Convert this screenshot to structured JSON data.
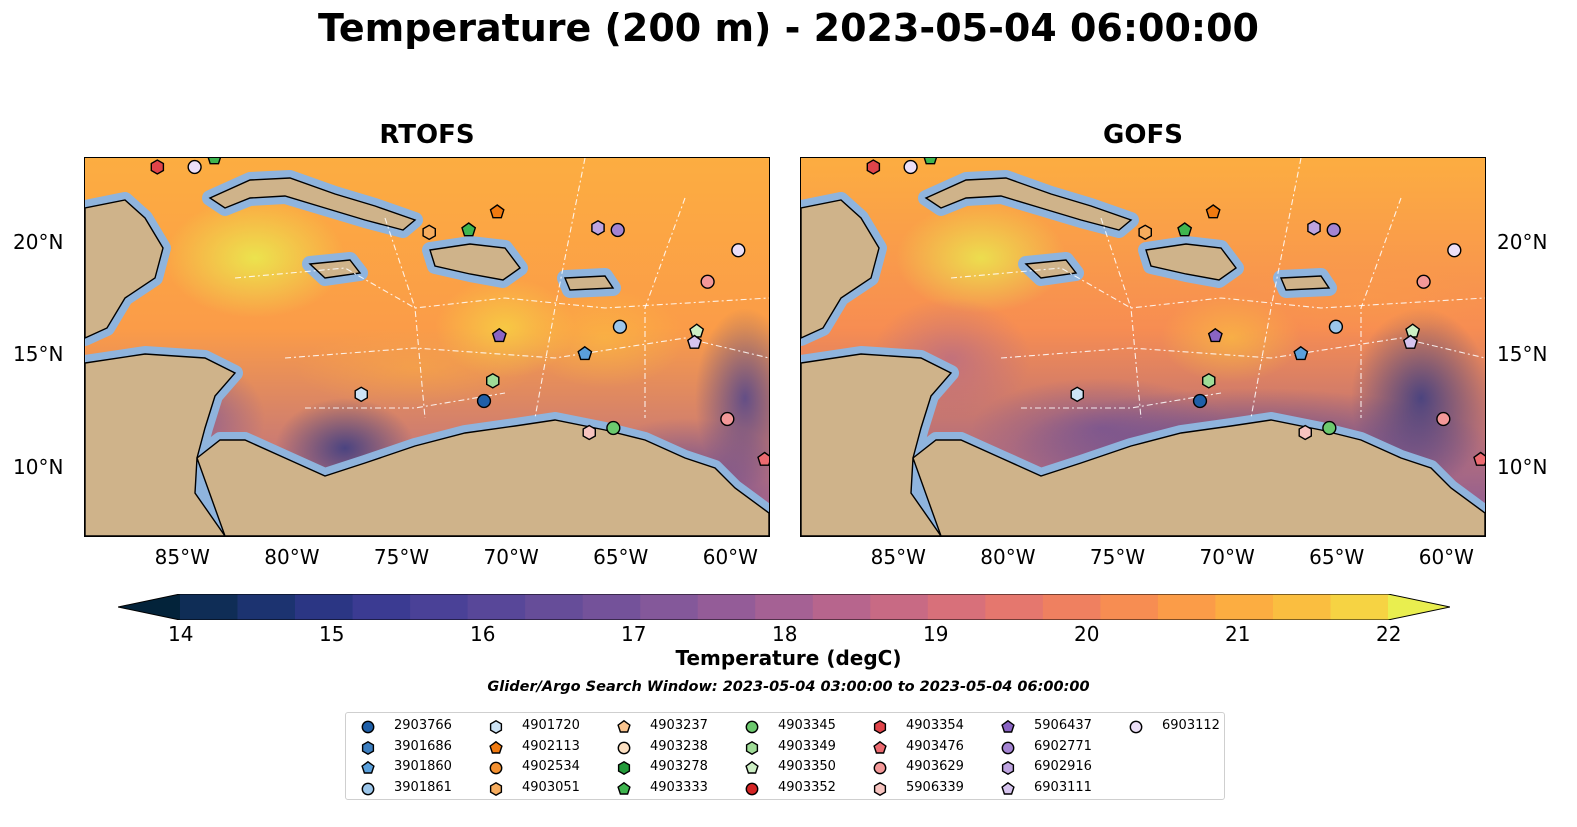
{
  "title": "Temperature (200 m) - 2023-05-04 06:00:00",
  "panels": [
    {
      "title": "RTOFS"
    },
    {
      "title": "GOFS"
    }
  ],
  "axes": {
    "lon_ticks": [
      "85°W",
      "80°W",
      "75°W",
      "70°W",
      "65°W",
      "60°W"
    ],
    "lat_ticks": [
      "20°N",
      "15°N",
      "10°N"
    ],
    "lon_values": [
      -85,
      -80,
      -75,
      -70,
      -65,
      -60
    ],
    "lat_values": [
      20,
      15,
      10
    ],
    "lon_range": [
      -89.5,
      -58.3
    ],
    "lat_range": [
      7.0,
      23.8
    ]
  },
  "colorbar": {
    "label": "Temperature (degC)",
    "ticks": [
      "14",
      "15",
      "16",
      "17",
      "18",
      "19",
      "20",
      "21",
      "22"
    ],
    "tick_values": [
      14,
      15,
      16,
      17,
      18,
      19,
      20,
      21,
      22
    ],
    "range": [
      13.6,
      22.4
    ],
    "extend": "both",
    "colors": [
      "#03233a",
      "#0f2d56",
      "#1c3370",
      "#2b3684",
      "#3b3b92",
      "#4a4197",
      "#584799",
      "#664d99",
      "#74529a",
      "#84589a",
      "#945c98",
      "#a56194",
      "#b7658d",
      "#c86a84",
      "#d8707a",
      "#e5776e",
      "#ef8060",
      "#f78d52",
      "#fb9c48",
      "#fcad41",
      "#fabe40",
      "#f6d343",
      "#e9ee4f"
    ]
  },
  "search_window": "Glider/Argo Search Window: 2023-05-04 03:00:00 to 2023-05-04 06:00:00",
  "legend": [
    {
      "id": "2903766",
      "shape": "circle",
      "color": "#1f5fa8"
    },
    {
      "id": "3901686",
      "shape": "hexagon",
      "color": "#3d7fc0"
    },
    {
      "id": "3901860",
      "shape": "pentagon",
      "color": "#5aa0dc"
    },
    {
      "id": "3901861",
      "shape": "circle",
      "color": "#9cc6ea"
    },
    {
      "id": "4901720",
      "shape": "hexagon",
      "color": "#cde3f5"
    },
    {
      "id": "4902113",
      "shape": "pentagon",
      "color": "#f07a10"
    },
    {
      "id": "4902534",
      "shape": "circle",
      "color": "#f39030"
    },
    {
      "id": "4903051",
      "shape": "hexagon",
      "color": "#f6ac5e"
    },
    {
      "id": "4903237",
      "shape": "pentagon",
      "color": "#f9c48f"
    },
    {
      "id": "4903238",
      "shape": "circle",
      "color": "#fde0c2"
    },
    {
      "id": "4903278",
      "shape": "hexagon",
      "color": "#239a3a"
    },
    {
      "id": "4903333",
      "shape": "pentagon",
      "color": "#3fb54f"
    },
    {
      "id": "4903345",
      "shape": "circle",
      "color": "#6cc96e"
    },
    {
      "id": "4903349",
      "shape": "hexagon",
      "color": "#9fdc97"
    },
    {
      "id": "4903350",
      "shape": "pentagon",
      "color": "#cdefc4"
    },
    {
      "id": "4903352",
      "shape": "circle",
      "color": "#d42424"
    },
    {
      "id": "4903354",
      "shape": "hexagon",
      "color": "#e0444a"
    },
    {
      "id": "4903476",
      "shape": "pentagon",
      "color": "#ec6a70"
    },
    {
      "id": "4903629",
      "shape": "circle",
      "color": "#f39898"
    },
    {
      "id": "5906339",
      "shape": "hexagon",
      "color": "#f7c4c0"
    },
    {
      "id": "5906437",
      "shape": "pentagon",
      "color": "#8a64c4"
    },
    {
      "id": "6902771",
      "shape": "circle",
      "color": "#a484d2"
    },
    {
      "id": "6902916",
      "shape": "hexagon",
      "color": "#bea4e0"
    },
    {
      "id": "6903111",
      "shape": "pentagon",
      "color": "#d6c4ee"
    },
    {
      "id": "6903112",
      "shape": "circle",
      "color": "#ecdff7"
    }
  ],
  "platforms": [
    {
      "id": "4903354",
      "lon": -86.2,
      "lat": 23.4
    },
    {
      "id": "6903112",
      "lon": -84.5,
      "lat": 23.4
    },
    {
      "id": "4903333",
      "lon": -83.6,
      "lat": 23.8
    },
    {
      "id": "4903051",
      "lon": -73.8,
      "lat": 20.5
    },
    {
      "id": "4903333",
      "lon": -72.0,
      "lat": 20.6
    },
    {
      "id": "4902113",
      "lon": -70.7,
      "lat": 21.4
    },
    {
      "id": "6902916",
      "lon": -66.1,
      "lat": 20.7
    },
    {
      "id": "6902771",
      "lon": -65.2,
      "lat": 20.6
    },
    {
      "id": "6903112",
      "lon": -59.7,
      "lat": 19.7
    },
    {
      "id": "4903629",
      "lon": -61.1,
      "lat": 18.3
    },
    {
      "id": "3901861",
      "lon": -65.1,
      "lat": 16.3
    },
    {
      "id": "5906437",
      "lon": -70.6,
      "lat": 15.9
    },
    {
      "id": "3901860",
      "lon": -66.7,
      "lat": 15.1
    },
    {
      "id": "4903350",
      "lon": -61.6,
      "lat": 16.1
    },
    {
      "id": "6903111",
      "lon": -61.7,
      "lat": 15.6
    },
    {
      "id": "4903349",
      "lon": -70.9,
      "lat": 13.9
    },
    {
      "id": "4901720",
      "lon": -76.9,
      "lat": 13.3
    },
    {
      "id": "2903766",
      "lon": -71.3,
      "lat": 13.0
    },
    {
      "id": "4903345",
      "lon": -65.4,
      "lat": 11.8
    },
    {
      "id": "5906339",
      "lon": -66.5,
      "lat": 11.6
    },
    {
      "id": "4903629",
      "lon": -60.2,
      "lat": 12.2
    },
    {
      "id": "4903476",
      "lon": -58.5,
      "lat": 10.4
    }
  ]
}
